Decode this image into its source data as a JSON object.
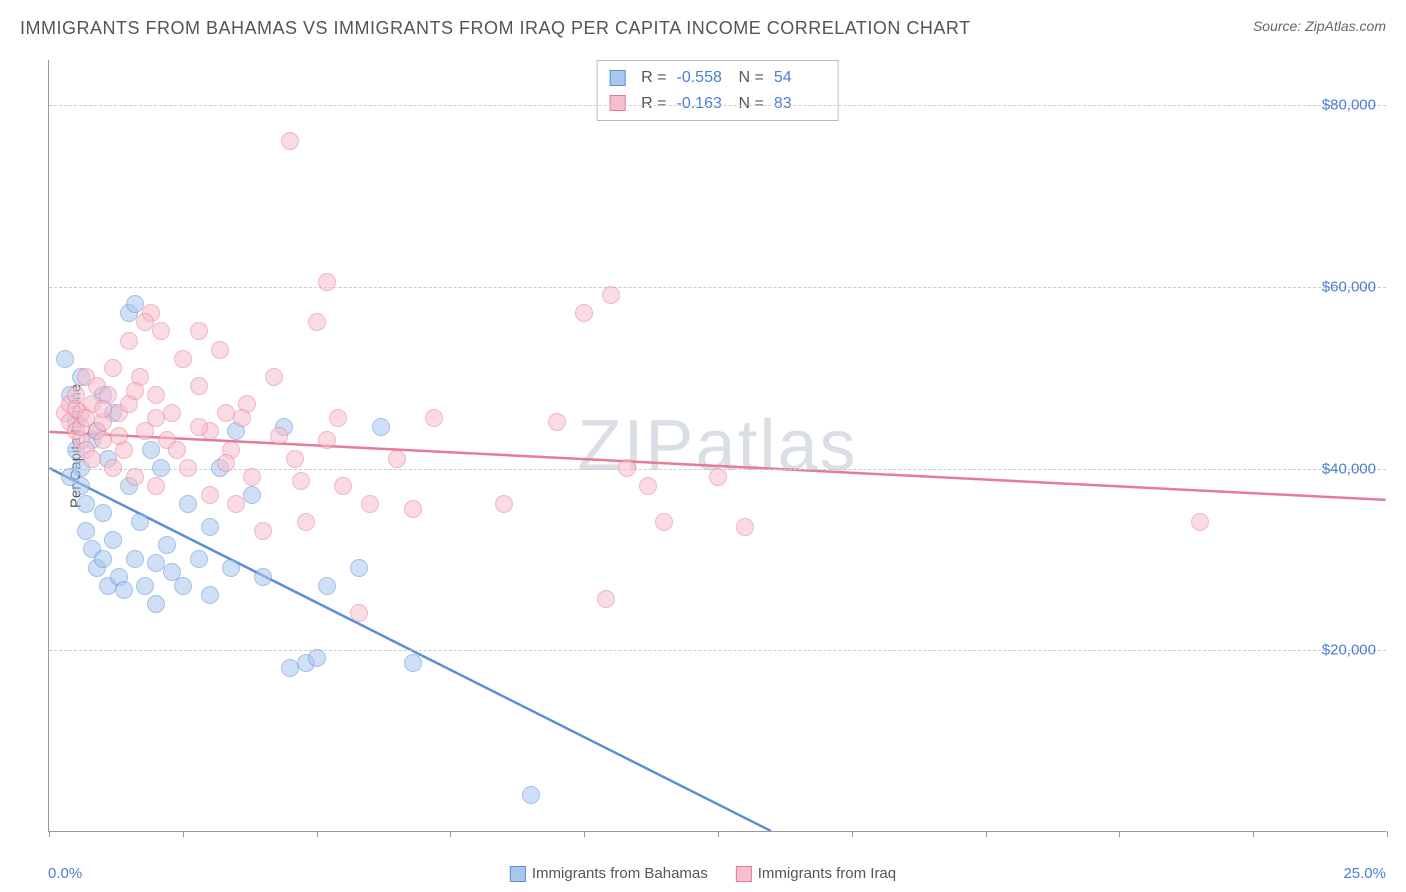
{
  "title": "IMMIGRANTS FROM BAHAMAS VS IMMIGRANTS FROM IRAQ PER CAPITA INCOME CORRELATION CHART",
  "source": "Source: ZipAtlas.com",
  "watermark": "ZIPatlas",
  "chart": {
    "type": "scatter",
    "ylabel": "Per Capita Income",
    "xlim": [
      0,
      25
    ],
    "ylim": [
      0,
      85000
    ],
    "x_start_label": "0.0%",
    "x_end_label": "25.0%",
    "ytick_values": [
      20000,
      40000,
      60000,
      80000
    ],
    "ytick_labels": [
      "$20,000",
      "$40,000",
      "$60,000",
      "$80,000"
    ],
    "xtick_positions": [
      0,
      2.5,
      5,
      7.5,
      10,
      12.5,
      15,
      17.5,
      20,
      22.5,
      25
    ],
    "background_color": "#ffffff",
    "grid_color": "#cccccc",
    "axis_color": "#999999",
    "tick_label_color": "#4a7dd6",
    "point_radius": 9,
    "point_opacity": 0.55,
    "series": [
      {
        "name": "Immigrants from Bahamas",
        "color_fill": "#a9c7ef",
        "color_stroke": "#5b8fd6",
        "R": "-0.558",
        "N": "54",
        "trend": {
          "x1": 0,
          "y1": 40000,
          "x2": 13.5,
          "y2": 0,
          "extend_dashed_to_x": 25
        },
        "points": [
          [
            0.3,
            52000
          ],
          [
            0.4,
            48000
          ],
          [
            0.5,
            45000
          ],
          [
            0.5,
            42000
          ],
          [
            0.6,
            40000
          ],
          [
            0.6,
            38000
          ],
          [
            0.7,
            36000
          ],
          [
            0.7,
            33000
          ],
          [
            0.8,
            43000
          ],
          [
            0.8,
            31000
          ],
          [
            0.9,
            29000
          ],
          [
            0.9,
            44000
          ],
          [
            1.0,
            30000
          ],
          [
            1.0,
            35000
          ],
          [
            1.1,
            27000
          ],
          [
            1.1,
            41000
          ],
          [
            1.2,
            46000
          ],
          [
            1.2,
            32000
          ],
          [
            1.3,
            28000
          ],
          [
            1.4,
            26500
          ],
          [
            1.5,
            38000
          ],
          [
            1.5,
            57000
          ],
          [
            1.6,
            30000
          ],
          [
            1.7,
            34000
          ],
          [
            1.8,
            27000
          ],
          [
            1.9,
            42000
          ],
          [
            2.0,
            29500
          ],
          [
            2.0,
            25000
          ],
          [
            2.1,
            40000
          ],
          [
            2.2,
            31500
          ],
          [
            2.3,
            28500
          ],
          [
            2.5,
            27000
          ],
          [
            2.6,
            36000
          ],
          [
            2.8,
            30000
          ],
          [
            3.0,
            33500
          ],
          [
            3.0,
            26000
          ],
          [
            3.2,
            40000
          ],
          [
            3.4,
            29000
          ],
          [
            3.5,
            44000
          ],
          [
            3.8,
            37000
          ],
          [
            4.0,
            28000
          ],
          [
            4.4,
            44500
          ],
          [
            4.5,
            18000
          ],
          [
            4.8,
            18500
          ],
          [
            5.0,
            19000
          ],
          [
            5.2,
            27000
          ],
          [
            5.8,
            29000
          ],
          [
            6.2,
            44500
          ],
          [
            6.8,
            18500
          ],
          [
            9.0,
            4000
          ],
          [
            1.0,
            48000
          ],
          [
            1.6,
            58000
          ],
          [
            0.6,
            50000
          ],
          [
            0.4,
            39000
          ]
        ]
      },
      {
        "name": "Immigrants from Iraq",
        "color_fill": "#f6bfcd",
        "color_stroke": "#e77b96",
        "R": "-0.163",
        "N": "83",
        "trend": {
          "x1": 0,
          "y1": 44000,
          "x2": 25,
          "y2": 36500
        },
        "points": [
          [
            0.3,
            46000
          ],
          [
            0.4,
            45000
          ],
          [
            0.4,
            47000
          ],
          [
            0.5,
            44000
          ],
          [
            0.5,
            48000
          ],
          [
            0.6,
            46000
          ],
          [
            0.6,
            43000
          ],
          [
            0.7,
            50000
          ],
          [
            0.7,
            42000
          ],
          [
            0.8,
            47000
          ],
          [
            0.8,
            41000
          ],
          [
            0.9,
            44000
          ],
          [
            0.9,
            49000
          ],
          [
            1.0,
            45000
          ],
          [
            1.0,
            43000
          ],
          [
            1.1,
            48000
          ],
          [
            1.2,
            40000
          ],
          [
            1.2,
            51000
          ],
          [
            1.3,
            46000
          ],
          [
            1.4,
            42000
          ],
          [
            1.5,
            47000
          ],
          [
            1.5,
            54000
          ],
          [
            1.6,
            39000
          ],
          [
            1.7,
            50000
          ],
          [
            1.8,
            44000
          ],
          [
            1.9,
            57000
          ],
          [
            2.0,
            48000
          ],
          [
            2.0,
            38000
          ],
          [
            2.1,
            55000
          ],
          [
            2.2,
            43000
          ],
          [
            2.3,
            46000
          ],
          [
            2.5,
            52000
          ],
          [
            2.6,
            40000
          ],
          [
            2.8,
            49000
          ],
          [
            3.0,
            44000
          ],
          [
            3.0,
            37000
          ],
          [
            3.2,
            53000
          ],
          [
            3.4,
            42000
          ],
          [
            3.5,
            36000
          ],
          [
            3.7,
            47000
          ],
          [
            3.8,
            39000
          ],
          [
            4.0,
            33000
          ],
          [
            4.2,
            50000
          ],
          [
            4.5,
            76000
          ],
          [
            4.6,
            41000
          ],
          [
            4.8,
            34000
          ],
          [
            5.0,
            56000
          ],
          [
            5.2,
            43000
          ],
          [
            5.2,
            60500
          ],
          [
            5.5,
            38000
          ],
          [
            5.8,
            24000
          ],
          [
            6.0,
            36000
          ],
          [
            6.5,
            41000
          ],
          [
            6.8,
            35500
          ],
          [
            7.2,
            45500
          ],
          [
            8.5,
            36000
          ],
          [
            9.5,
            45000
          ],
          [
            10.0,
            57000
          ],
          [
            10.4,
            25500
          ],
          [
            10.5,
            59000
          ],
          [
            10.8,
            40000
          ],
          [
            11.2,
            38000
          ],
          [
            11.5,
            34000
          ],
          [
            12.5,
            39000
          ],
          [
            13.0,
            33500
          ],
          [
            21.5,
            34000
          ],
          [
            0.5,
            46500
          ],
          [
            0.6,
            44500
          ],
          [
            0.7,
            45500
          ],
          [
            1.0,
            46500
          ],
          [
            1.3,
            43500
          ],
          [
            1.6,
            48500
          ],
          [
            2.0,
            45500
          ],
          [
            2.4,
            42000
          ],
          [
            2.8,
            44500
          ],
          [
            3.3,
            40500
          ],
          [
            3.6,
            45500
          ],
          [
            4.3,
            43500
          ],
          [
            4.7,
            38500
          ],
          [
            5.4,
            45500
          ],
          [
            1.8,
            56000
          ],
          [
            2.8,
            55000
          ],
          [
            3.3,
            46000
          ]
        ]
      }
    ]
  }
}
